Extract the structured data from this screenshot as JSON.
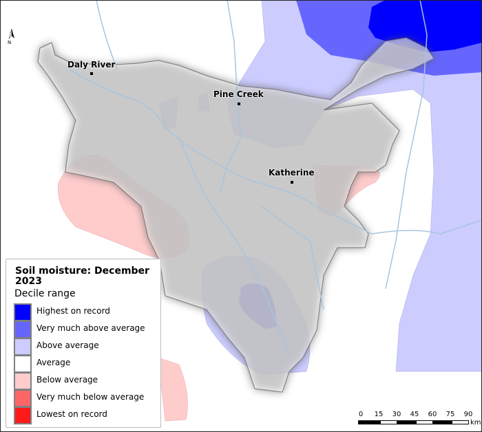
{
  "legend": {
    "title": "Soil moisture: December 2023",
    "subtitle": "Decile range",
    "items": [
      {
        "label": "Highest on record",
        "color": "#0000ff"
      },
      {
        "label": "Very much above average",
        "color": "#6666ff"
      },
      {
        "label": "Above average",
        "color": "#ccccff"
      },
      {
        "label": "Average",
        "color": "#ffffff"
      },
      {
        "label": "Below average",
        "color": "#ffcccc"
      },
      {
        "label": "Very much below average",
        "color": "#ff6666"
      },
      {
        "label": "Lowest on record",
        "color": "#ff1a1a"
      }
    ]
  },
  "towns": [
    {
      "name": "Daly River"
    },
    {
      "name": "Pine Creek"
    },
    {
      "name": "Katherine"
    }
  ],
  "north_label": "N",
  "scale": {
    "ticks": [
      "0",
      "15",
      "30",
      "45",
      "60",
      "75",
      "90"
    ],
    "unit": "km"
  }
}
